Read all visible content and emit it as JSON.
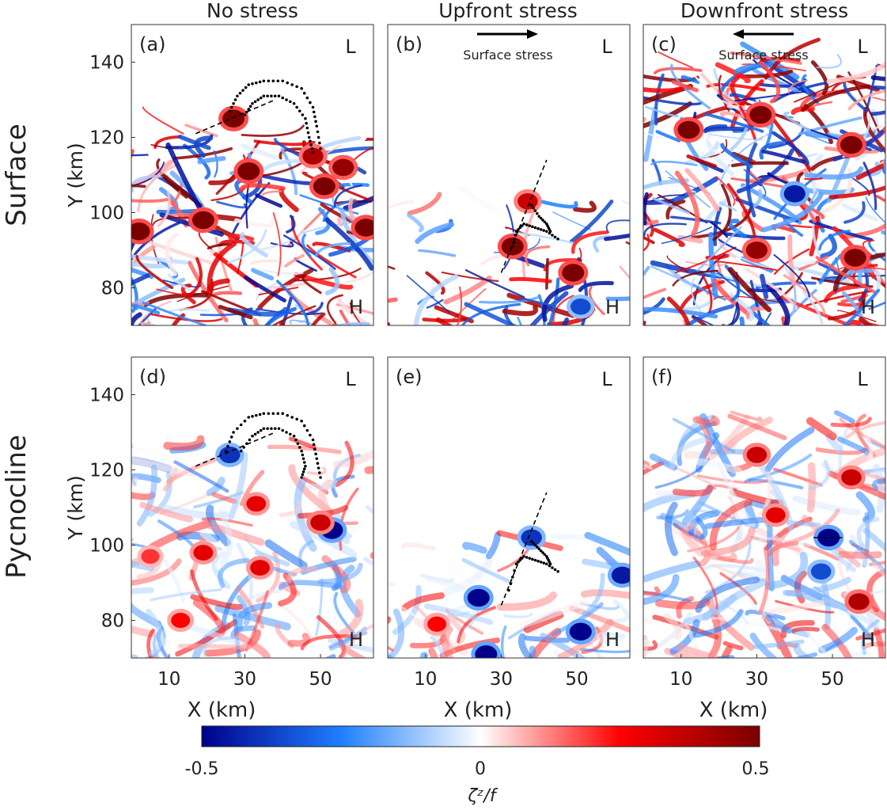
{
  "figure": {
    "col_titles": [
      "No stress",
      "Upfront stress",
      "Downfront stress"
    ],
    "row_titles": [
      "Surface",
      "Pycnocline"
    ]
  },
  "chart_data": [
    {
      "type": "heatmap",
      "panel": "(a)",
      "row": "Surface",
      "column": "No stress",
      "xlabel": "",
      "ylabel": "Y (km)",
      "xlim": [
        0,
        64
      ],
      "ylim": [
        70,
        150
      ],
      "xticks": [],
      "yticks": [
        80,
        100,
        120,
        140
      ],
      "corner_labels": {
        "top": "L",
        "bottom": "H"
      },
      "vortices": [
        {
          "x": 27,
          "y": 125,
          "value": 0.5
        },
        {
          "x": 31,
          "y": 111,
          "value": 0.5
        },
        {
          "x": 51,
          "y": 107,
          "value": 0.5
        },
        {
          "x": 56,
          "y": 112,
          "value": 0.45
        },
        {
          "x": 19,
          "y": 98,
          "value": 0.5
        },
        {
          "x": 2,
          "y": 95,
          "value": 0.5
        },
        {
          "x": 62,
          "y": 96,
          "value": 0.5
        },
        {
          "x": 48,
          "y": 115,
          "value": 0.4
        }
      ],
      "dotted_tracks": [
        [
          [
            26,
            127
          ],
          [
            28,
            131
          ],
          [
            31,
            134
          ],
          [
            35,
            135
          ],
          [
            40,
            135
          ],
          [
            45,
            133
          ],
          [
            48,
            128
          ],
          [
            49,
            123
          ],
          [
            50,
            117
          ]
        ],
        [
          [
            30,
            126
          ],
          [
            32,
            129
          ],
          [
            35,
            131
          ],
          [
            39,
            131
          ],
          [
            43,
            129
          ],
          [
            46,
            125
          ],
          [
            47,
            120
          ],
          [
            48,
            116
          ]
        ]
      ],
      "dashed_line": [
        [
          17,
          121
        ],
        [
          38,
          130
        ]
      ]
    },
    {
      "type": "heatmap",
      "panel": "(b)",
      "row": "Surface",
      "column": "Upfront stress",
      "xlabel": "",
      "ylabel": "",
      "xlim": [
        0,
        64
      ],
      "ylim": [
        70,
        150
      ],
      "xticks": [],
      "yticks": [],
      "corner_labels": {
        "top": "L",
        "bottom": "H"
      },
      "annotation": {
        "text": "Surface stress",
        "arrow": "right"
      },
      "vortices": [
        {
          "x": 37,
          "y": 103,
          "value": 0.35
        },
        {
          "x": 33,
          "y": 91,
          "value": 0.5
        },
        {
          "x": 49,
          "y": 84,
          "value": 0.5
        },
        {
          "x": 51,
          "y": 75,
          "value": -0.35
        }
      ],
      "dotted_tracks": [
        [
          [
            38,
            102
          ],
          [
            40,
            99
          ],
          [
            42,
            97
          ],
          [
            43,
            95
          ]
        ],
        [
          [
            33,
            91
          ],
          [
            34,
            95
          ],
          [
            36,
            97
          ],
          [
            39,
            96
          ],
          [
            42,
            95
          ],
          [
            45,
            93
          ]
        ]
      ],
      "dashed_line": [
        [
          30,
          84
        ],
        [
          42,
          114
        ]
      ]
    },
    {
      "type": "heatmap",
      "panel": "(c)",
      "row": "Surface",
      "column": "Downfront stress",
      "xlabel": "",
      "ylabel": "",
      "xlim": [
        0,
        64
      ],
      "ylim": [
        70,
        150
      ],
      "xticks": [],
      "yticks": [],
      "corner_labels": {
        "top": "L",
        "bottom": "H"
      },
      "annotation": {
        "text": "Surface stress",
        "arrow": "left"
      },
      "vortices": [
        {
          "x": 31,
          "y": 126,
          "value": 0.5
        },
        {
          "x": 55,
          "y": 118,
          "value": 0.5
        },
        {
          "x": 12,
          "y": 122,
          "value": 0.5
        },
        {
          "x": 56,
          "y": 88,
          "value": 0.5
        },
        {
          "x": 30,
          "y": 90,
          "value": 0.45
        },
        {
          "x": 40,
          "y": 105,
          "value": -0.45
        }
      ]
    },
    {
      "type": "heatmap",
      "panel": "(d)",
      "row": "Pycnocline",
      "column": "No stress",
      "xlabel": "X (km)",
      "ylabel": "Y (km)",
      "xlim": [
        0,
        64
      ],
      "ylim": [
        70,
        150
      ],
      "xticks": [
        10,
        30,
        50
      ],
      "yticks": [
        80,
        100,
        120,
        140
      ],
      "corner_labels": {
        "top": "L",
        "bottom": "H"
      },
      "vortices": [
        {
          "x": 26,
          "y": 124,
          "value": -0.4
        },
        {
          "x": 33,
          "y": 111,
          "value": 0.3
        },
        {
          "x": 53,
          "y": 104,
          "value": -0.5
        },
        {
          "x": 50,
          "y": 106,
          "value": 0.35
        },
        {
          "x": 19,
          "y": 98,
          "value": 0.3
        },
        {
          "x": 34,
          "y": 94,
          "value": 0.3
        },
        {
          "x": 5,
          "y": 97,
          "value": 0.2
        },
        {
          "x": 13,
          "y": 80,
          "value": 0.25
        }
      ],
      "dotted_tracks": [
        [
          [
            25,
            125
          ],
          [
            27,
            130
          ],
          [
            31,
            134
          ],
          [
            35,
            135
          ],
          [
            40,
            135
          ],
          [
            45,
            133
          ],
          [
            48,
            128
          ],
          [
            49,
            123
          ],
          [
            50,
            118
          ]
        ],
        [
          [
            29,
            125
          ],
          [
            32,
            129
          ],
          [
            35,
            131
          ],
          [
            39,
            131
          ],
          [
            43,
            129
          ],
          [
            45,
            125
          ],
          [
            46,
            121
          ],
          [
            45,
            118
          ]
        ]
      ],
      "dashed_line": [
        [
          17,
          121
        ],
        [
          38,
          130
        ]
      ]
    },
    {
      "type": "heatmap",
      "panel": "(e)",
      "row": "Pycnocline",
      "column": "Upfront stress",
      "xlabel": "X (km)",
      "ylabel": "",
      "xlim": [
        0,
        64
      ],
      "ylim": [
        70,
        150
      ],
      "xticks": [
        10,
        30,
        50
      ],
      "yticks": [],
      "corner_labels": {
        "top": "L",
        "bottom": "H"
      },
      "vortices": [
        {
          "x": 38,
          "y": 102,
          "value": -0.4
        },
        {
          "x": 24,
          "y": 86,
          "value": -0.5
        },
        {
          "x": 26,
          "y": 71,
          "value": -0.5
        },
        {
          "x": 51,
          "y": 77,
          "value": -0.5
        },
        {
          "x": 62,
          "y": 92,
          "value": -0.45
        },
        {
          "x": 13,
          "y": 79,
          "value": 0.25
        }
      ],
      "dotted_tracks": [
        [
          [
            38,
            101
          ],
          [
            40,
            99
          ],
          [
            42,
            97
          ],
          [
            43,
            95
          ]
        ],
        [
          [
            32,
            88
          ],
          [
            34,
            95
          ],
          [
            36,
            97
          ],
          [
            39,
            96
          ],
          [
            42,
            95
          ],
          [
            45,
            93
          ]
        ]
      ],
      "dashed_line": [
        [
          30,
          84
        ],
        [
          42,
          114
        ]
      ]
    },
    {
      "type": "heatmap",
      "panel": "(f)",
      "row": "Pycnocline",
      "column": "Downfront stress",
      "xlabel": "X (km)",
      "ylabel": "",
      "xlim": [
        0,
        64
      ],
      "ylim": [
        70,
        150
      ],
      "xticks": [
        10,
        30,
        50
      ],
      "yticks": [],
      "corner_labels": {
        "top": "L",
        "bottom": "H"
      },
      "vortices": [
        {
          "x": 49,
          "y": 102,
          "value": -0.5
        },
        {
          "x": 30,
          "y": 124,
          "value": 0.35
        },
        {
          "x": 55,
          "y": 118,
          "value": 0.35
        },
        {
          "x": 35,
          "y": 108,
          "value": 0.3
        },
        {
          "x": 57,
          "y": 85,
          "value": 0.4
        },
        {
          "x": 47,
          "y": 93,
          "value": -0.35
        }
      ],
      "dashed_line": [
        [
          45,
          102
        ],
        [
          53,
          102
        ]
      ]
    }
  ],
  "colorbar": {
    "label": "ζᶻ/f",
    "min": -0.5,
    "max": 0.5,
    "tick_labels": [
      "-0.5",
      "0",
      "0.5"
    ],
    "colors": [
      "#00008b",
      "#1f7fff",
      "#ffffff",
      "#ff0000",
      "#7a0000"
    ]
  }
}
